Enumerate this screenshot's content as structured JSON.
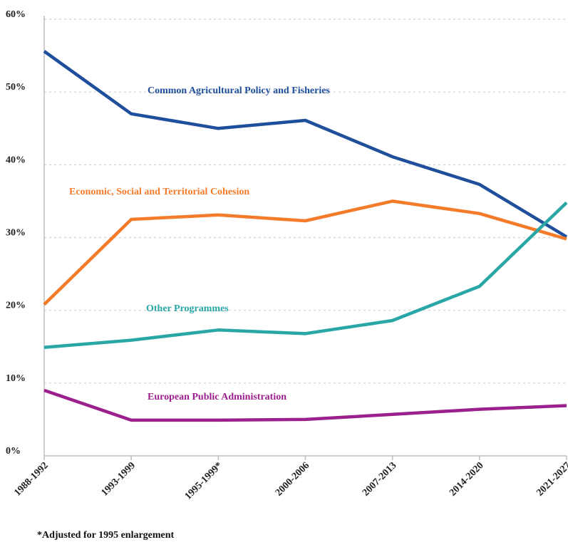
{
  "chart_data": {
    "type": "line",
    "ylim": [
      0,
      60
    ],
    "y_ticks": [
      0,
      10,
      20,
      30,
      40,
      50,
      60
    ],
    "y_tick_labels": [
      "0%",
      "10%",
      "20%",
      "30%",
      "40%",
      "50%",
      "60%"
    ],
    "categories": [
      "1988-1992",
      "1993-1999",
      "1995-1999*",
      "2000-2006",
      "2007-2013",
      "2014-2020",
      "2021-2027"
    ],
    "grid": "horizontal dotted",
    "series": [
      {
        "name": "Common Agricultural Policy and Fisheries",
        "color": "#1f4e9b",
        "values": [
          55.6,
          47.0,
          45.0,
          46.1,
          41.1,
          37.3,
          30.1
        ]
      },
      {
        "name": "Economic, Social and Territorial Cohesion",
        "color": "#f47b2a",
        "values": [
          20.8,
          32.5,
          33.1,
          32.3,
          35.0,
          33.3,
          29.8
        ]
      },
      {
        "name": "Other Programmes",
        "color": "#2aa6a6",
        "values": [
          14.9,
          15.9,
          17.3,
          16.8,
          18.6,
          23.3,
          34.8
        ]
      },
      {
        "name": "European Public Administration",
        "color": "#9b1f8c",
        "values": [
          9.0,
          4.9,
          4.9,
          5.0,
          5.7,
          6.4,
          6.9
        ]
      }
    ],
    "footnote": "*Adjusted for 1995 enlargement"
  }
}
